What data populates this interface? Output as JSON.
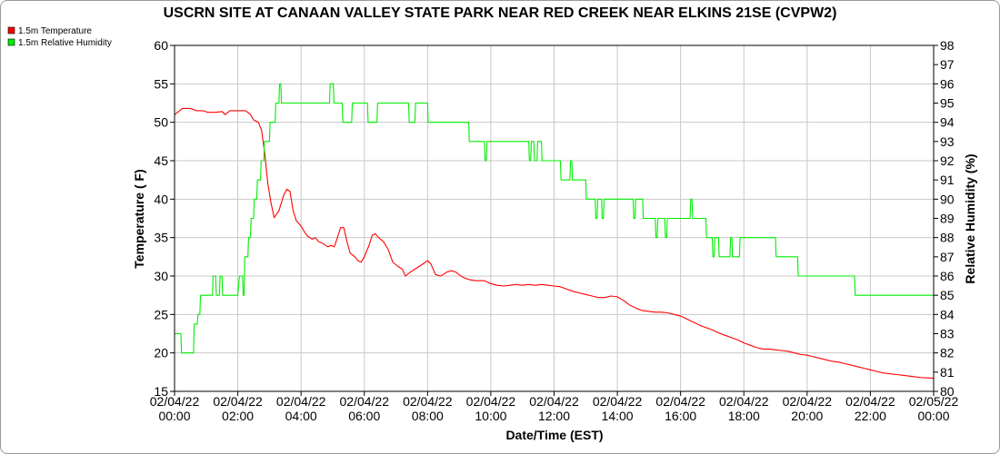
{
  "chart_data": {
    "type": "line",
    "title": "USCRN SITE AT CANAAN VALLEY STATE PARK NEAR RED CREEK NEAR ELKINS 21SE (CVPW2)",
    "xlabel": "Date/Time (EST)",
    "ylabel_left": "Temperature ( F)",
    "ylabel_right": "Relative Humidity (%)",
    "x_ticks": [
      {
        "date": "02/04/22",
        "time": "00:00",
        "hour": 0
      },
      {
        "date": "02/04/22",
        "time": "02:00",
        "hour": 2
      },
      {
        "date": "02/04/22",
        "time": "04:00",
        "hour": 4
      },
      {
        "date": "02/04/22",
        "time": "06:00",
        "hour": 6
      },
      {
        "date": "02/04/22",
        "time": "08:00",
        "hour": 8
      },
      {
        "date": "02/04/22",
        "time": "10:00",
        "hour": 10
      },
      {
        "date": "02/04/22",
        "time": "12:00",
        "hour": 12
      },
      {
        "date": "02/04/22",
        "time": "14:00",
        "hour": 14
      },
      {
        "date": "02/04/22",
        "time": "16:00",
        "hour": 16
      },
      {
        "date": "02/04/22",
        "time": "18:00",
        "hour": 18
      },
      {
        "date": "02/04/22",
        "time": "20:00",
        "hour": 20
      },
      {
        "date": "02/04/22",
        "time": "22:00",
        "hour": 22
      },
      {
        "date": "02/05/22",
        "time": "00:00",
        "hour": 24
      }
    ],
    "xlim": [
      0,
      24
    ],
    "ylim_left": [
      15,
      60
    ],
    "yticks_left": [
      15,
      20,
      25,
      30,
      35,
      40,
      45,
      50,
      55,
      60
    ],
    "ylim_right": [
      80,
      98
    ],
    "yticks_right": [
      80,
      81,
      82,
      83,
      84,
      85,
      86,
      87,
      88,
      89,
      90,
      91,
      92,
      93,
      94,
      95,
      96,
      97,
      98
    ],
    "grid": true,
    "legend_placement": "top-left",
    "series": [
      {
        "name": "1.5m Temperature",
        "color": "#ff0000",
        "axis": "left",
        "points": [
          [
            0,
            51.0
          ],
          [
            0.1,
            51.3
          ],
          [
            0.25,
            51.8
          ],
          [
            0.5,
            51.8
          ],
          [
            0.7,
            51.5
          ],
          [
            0.9,
            51.5
          ],
          [
            1.05,
            51.3
          ],
          [
            1.3,
            51.3
          ],
          [
            1.5,
            51.4
          ],
          [
            1.6,
            51.0
          ],
          [
            1.75,
            51.5
          ],
          [
            2.0,
            51.5
          ],
          [
            2.25,
            51.5
          ],
          [
            2.4,
            51.0
          ],
          [
            2.5,
            50.3
          ],
          [
            2.65,
            50.0
          ],
          [
            2.75,
            49.0
          ],
          [
            2.85,
            46.0
          ],
          [
            2.95,
            42.0
          ],
          [
            3.05,
            39.5
          ],
          [
            3.15,
            37.6
          ],
          [
            3.3,
            38.5
          ],
          [
            3.45,
            40.5
          ],
          [
            3.55,
            41.3
          ],
          [
            3.65,
            41.0
          ],
          [
            3.75,
            38.5
          ],
          [
            3.85,
            37.2
          ],
          [
            4.0,
            36.5
          ],
          [
            4.1,
            35.8
          ],
          [
            4.2,
            35.2
          ],
          [
            4.35,
            34.8
          ],
          [
            4.45,
            35.0
          ],
          [
            4.55,
            34.5
          ],
          [
            4.7,
            34.2
          ],
          [
            4.85,
            33.8
          ],
          [
            4.95,
            34.0
          ],
          [
            5.05,
            33.8
          ],
          [
            5.15,
            35.0
          ],
          [
            5.25,
            36.3
          ],
          [
            5.35,
            36.3
          ],
          [
            5.45,
            34.5
          ],
          [
            5.55,
            33.0
          ],
          [
            5.7,
            32.5
          ],
          [
            5.8,
            32.0
          ],
          [
            5.9,
            31.8
          ],
          [
            6.0,
            32.5
          ],
          [
            6.15,
            34.0
          ],
          [
            6.25,
            35.3
          ],
          [
            6.35,
            35.5
          ],
          [
            6.45,
            35.0
          ],
          [
            6.6,
            34.5
          ],
          [
            6.75,
            33.5
          ],
          [
            6.9,
            31.8
          ],
          [
            7.05,
            31.3
          ],
          [
            7.2,
            30.9
          ],
          [
            7.3,
            30.0
          ],
          [
            7.45,
            30.5
          ],
          [
            7.6,
            30.9
          ],
          [
            7.75,
            31.3
          ],
          [
            7.9,
            31.7
          ],
          [
            8.0,
            32.0
          ],
          [
            8.1,
            31.6
          ],
          [
            8.25,
            30.2
          ],
          [
            8.4,
            30.0
          ],
          [
            8.5,
            30.2
          ],
          [
            8.6,
            30.5
          ],
          [
            8.75,
            30.7
          ],
          [
            8.9,
            30.5
          ],
          [
            9.05,
            30.0
          ],
          [
            9.2,
            29.7
          ],
          [
            9.35,
            29.5
          ],
          [
            9.5,
            29.4
          ],
          [
            9.8,
            29.4
          ],
          [
            10.0,
            29.0
          ],
          [
            10.2,
            28.8
          ],
          [
            10.4,
            28.7
          ],
          [
            10.6,
            28.8
          ],
          [
            10.8,
            28.9
          ],
          [
            11.0,
            28.8
          ],
          [
            11.2,
            28.9
          ],
          [
            11.4,
            28.8
          ],
          [
            11.6,
            28.9
          ],
          [
            11.8,
            28.8
          ],
          [
            12.0,
            28.7
          ],
          [
            12.2,
            28.6
          ],
          [
            12.4,
            28.3
          ],
          [
            12.6,
            28.0
          ],
          [
            12.8,
            27.8
          ],
          [
            13.0,
            27.6
          ],
          [
            13.2,
            27.4
          ],
          [
            13.4,
            27.2
          ],
          [
            13.6,
            27.2
          ],
          [
            13.8,
            27.4
          ],
          [
            14.0,
            27.3
          ],
          [
            14.2,
            26.8
          ],
          [
            14.4,
            26.2
          ],
          [
            14.6,
            25.8
          ],
          [
            14.8,
            25.5
          ],
          [
            15.0,
            25.4
          ],
          [
            15.2,
            25.3
          ],
          [
            15.4,
            25.3
          ],
          [
            15.6,
            25.2
          ],
          [
            15.8,
            25.0
          ],
          [
            16.0,
            24.8
          ],
          [
            16.2,
            24.4
          ],
          [
            16.4,
            24.0
          ],
          [
            16.6,
            23.6
          ],
          [
            16.8,
            23.3
          ],
          [
            17.0,
            23.0
          ],
          [
            17.2,
            22.6
          ],
          [
            17.4,
            22.3
          ],
          [
            17.6,
            22.0
          ],
          [
            17.8,
            21.7
          ],
          [
            18.0,
            21.3
          ],
          [
            18.2,
            21.0
          ],
          [
            18.4,
            20.7
          ],
          [
            18.6,
            20.5
          ],
          [
            18.8,
            20.5
          ],
          [
            19.0,
            20.4
          ],
          [
            19.2,
            20.3
          ],
          [
            19.4,
            20.2
          ],
          [
            19.6,
            20.0
          ],
          [
            19.8,
            19.8
          ],
          [
            20.0,
            19.7
          ],
          [
            20.2,
            19.5
          ],
          [
            20.4,
            19.3
          ],
          [
            20.6,
            19.1
          ],
          [
            20.8,
            18.9
          ],
          [
            21.0,
            18.8
          ],
          [
            21.2,
            18.6
          ],
          [
            21.4,
            18.4
          ],
          [
            21.6,
            18.2
          ],
          [
            21.8,
            18.0
          ],
          [
            22.0,
            17.8
          ],
          [
            22.2,
            17.6
          ],
          [
            22.4,
            17.4
          ],
          [
            22.6,
            17.3
          ],
          [
            22.8,
            17.2
          ],
          [
            23.0,
            17.1
          ],
          [
            23.2,
            17.0
          ],
          [
            23.4,
            16.9
          ],
          [
            23.6,
            16.8
          ],
          [
            24.0,
            16.7
          ]
        ]
      },
      {
        "name": "1.5m Relative Humidity",
        "color": "#00ee00",
        "axis": "right",
        "points": [
          [
            0,
            83.0
          ],
          [
            0.2,
            83.0
          ],
          [
            0.22,
            82.0
          ],
          [
            0.6,
            82.0
          ],
          [
            0.62,
            83.5
          ],
          [
            0.72,
            83.5
          ],
          [
            0.74,
            84.0
          ],
          [
            0.8,
            84.0
          ],
          [
            0.82,
            85.0
          ],
          [
            1.2,
            85.0
          ],
          [
            1.22,
            86.0
          ],
          [
            1.3,
            86.0
          ],
          [
            1.32,
            85.0
          ],
          [
            1.42,
            85.0
          ],
          [
            1.44,
            86.0
          ],
          [
            1.5,
            86.0
          ],
          [
            1.52,
            85.0
          ],
          [
            2.0,
            85.0
          ],
          [
            2.05,
            86.0
          ],
          [
            2.15,
            86.0
          ],
          [
            2.17,
            85.0
          ],
          [
            2.2,
            85.0
          ],
          [
            2.22,
            87.0
          ],
          [
            2.32,
            87.0
          ],
          [
            2.34,
            88.0
          ],
          [
            2.4,
            88.0
          ],
          [
            2.42,
            89.0
          ],
          [
            2.5,
            89.0
          ],
          [
            2.52,
            90.0
          ],
          [
            2.6,
            90.0
          ],
          [
            2.62,
            91.0
          ],
          [
            2.72,
            91.0
          ],
          [
            2.74,
            92.0
          ],
          [
            2.82,
            92.0
          ],
          [
            2.84,
            93.0
          ],
          [
            3.0,
            93.0
          ],
          [
            3.02,
            94.0
          ],
          [
            3.18,
            94.0
          ],
          [
            3.2,
            95.0
          ],
          [
            3.3,
            95.0
          ],
          [
            3.32,
            96.0
          ],
          [
            3.36,
            96.0
          ],
          [
            3.38,
            95.0
          ],
          [
            4.9,
            95.0
          ],
          [
            4.92,
            96.0
          ],
          [
            5.02,
            96.0
          ],
          [
            5.04,
            95.0
          ],
          [
            5.3,
            95.0
          ],
          [
            5.32,
            94.0
          ],
          [
            5.6,
            94.0
          ],
          [
            5.62,
            95.0
          ],
          [
            6.1,
            95.0
          ],
          [
            6.12,
            94.0
          ],
          [
            6.4,
            94.0
          ],
          [
            6.42,
            95.0
          ],
          [
            7.4,
            95.0
          ],
          [
            7.42,
            94.0
          ],
          [
            7.6,
            94.0
          ],
          [
            7.62,
            95.0
          ],
          [
            8.0,
            95.0
          ],
          [
            8.02,
            94.0
          ],
          [
            9.3,
            94.0
          ],
          [
            9.32,
            93.0
          ],
          [
            9.8,
            93.0
          ],
          [
            9.82,
            92.0
          ],
          [
            9.86,
            92.0
          ],
          [
            9.88,
            93.0
          ],
          [
            11.2,
            93.0
          ],
          [
            11.22,
            92.0
          ],
          [
            11.26,
            92.0
          ],
          [
            11.28,
            93.0
          ],
          [
            11.36,
            93.0
          ],
          [
            11.38,
            92.0
          ],
          [
            11.46,
            92.0
          ],
          [
            11.48,
            93.0
          ],
          [
            11.6,
            93.0
          ],
          [
            11.62,
            92.0
          ],
          [
            12.2,
            92.0
          ],
          [
            12.22,
            91.0
          ],
          [
            12.5,
            91.0
          ],
          [
            12.52,
            92.0
          ],
          [
            12.56,
            92.0
          ],
          [
            12.58,
            91.0
          ],
          [
            13.0,
            91.0
          ],
          [
            13.02,
            90.0
          ],
          [
            13.3,
            90.0
          ],
          [
            13.32,
            89.0
          ],
          [
            13.36,
            89.0
          ],
          [
            13.38,
            90.0
          ],
          [
            13.5,
            90.0
          ],
          [
            13.52,
            89.0
          ],
          [
            13.56,
            89.0
          ],
          [
            13.58,
            90.0
          ],
          [
            14.5,
            90.0
          ],
          [
            14.52,
            89.0
          ],
          [
            14.56,
            89.0
          ],
          [
            14.58,
            90.0
          ],
          [
            14.8,
            90.0
          ],
          [
            14.82,
            89.0
          ],
          [
            15.2,
            89.0
          ],
          [
            15.22,
            88.0
          ],
          [
            15.26,
            88.0
          ],
          [
            15.28,
            89.0
          ],
          [
            15.5,
            89.0
          ],
          [
            15.52,
            88.0
          ],
          [
            15.56,
            88.0
          ],
          [
            15.58,
            89.0
          ],
          [
            16.3,
            89.0
          ],
          [
            16.32,
            90.0
          ],
          [
            16.36,
            90.0
          ],
          [
            16.38,
            89.0
          ],
          [
            16.8,
            89.0
          ],
          [
            16.82,
            88.0
          ],
          [
            17.0,
            88.0
          ],
          [
            17.02,
            87.0
          ],
          [
            17.06,
            87.0
          ],
          [
            17.08,
            88.0
          ],
          [
            17.2,
            88.0
          ],
          [
            17.22,
            87.0
          ],
          [
            17.56,
            87.0
          ],
          [
            17.58,
            88.0
          ],
          [
            17.62,
            88.0
          ],
          [
            17.64,
            87.0
          ],
          [
            17.86,
            87.0
          ],
          [
            17.88,
            88.0
          ],
          [
            19.0,
            88.0
          ],
          [
            19.02,
            87.0
          ],
          [
            19.7,
            87.0
          ],
          [
            19.72,
            86.0
          ],
          [
            21.5,
            86.0
          ],
          [
            21.52,
            85.0
          ],
          [
            24.0,
            85.0
          ]
        ]
      }
    ]
  }
}
